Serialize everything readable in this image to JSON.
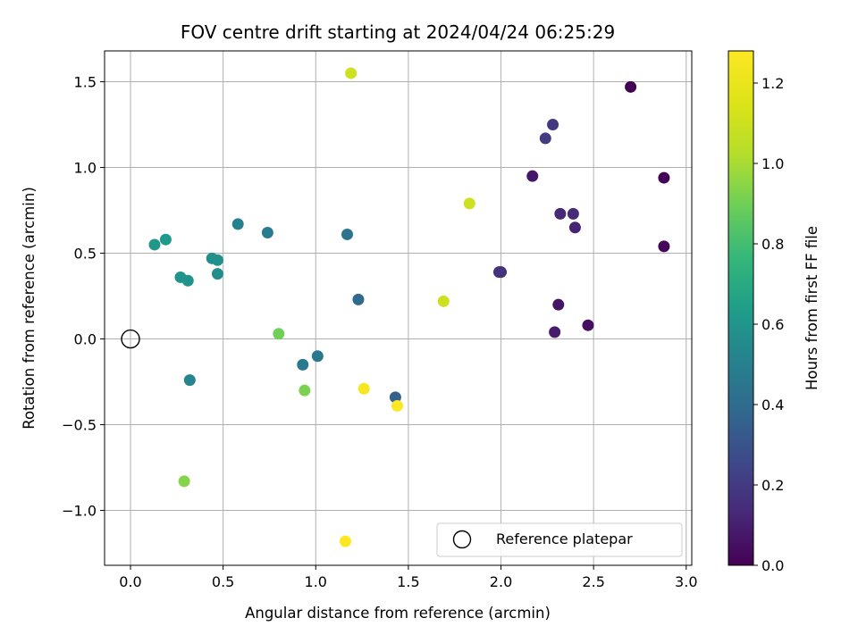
{
  "chart_data": {
    "type": "scatter",
    "title": "FOV centre drift starting at 2024/04/24 06:25:29",
    "xlabel": "Angular distance from reference (arcmin)",
    "ylabel": "Rotation from reference (arcmin)",
    "xlim": [
      -0.14,
      3.03
    ],
    "ylim": [
      -1.32,
      1.68
    ],
    "xticks": [
      0.0,
      0.5,
      1.0,
      1.5,
      2.0,
      2.5,
      3.0
    ],
    "xtick_labels": [
      "0.0",
      "0.5",
      "1.0",
      "1.5",
      "2.0",
      "2.5",
      "3.0"
    ],
    "yticks": [
      -1.0,
      -0.5,
      0.0,
      0.5,
      1.0,
      1.5
    ],
    "ytick_labels": [
      "−1.0",
      "−0.5",
      "0.0",
      "0.5",
      "1.0",
      "1.5"
    ],
    "grid": true,
    "colorbar": {
      "label": "Hours from first FF file",
      "min": 0.0,
      "max": 1.28,
      "ticks": [
        0.0,
        0.2,
        0.4,
        0.6,
        0.8,
        1.0,
        1.2
      ],
      "tick_labels": [
        "0.0",
        "0.2",
        "0.4",
        "0.6",
        "0.8",
        "1.0",
        "1.2"
      ],
      "colormap": "viridis"
    },
    "legend": {
      "placement": "lower-right",
      "entries": [
        "Reference platepar"
      ]
    },
    "reference_point": {
      "x": 0.0,
      "y": 0.0
    },
    "points": [
      {
        "x": 2.7,
        "y": 1.47,
        "hours": 0.0
      },
      {
        "x": 2.88,
        "y": 0.94,
        "hours": 0.01
      },
      {
        "x": 2.88,
        "y": 0.54,
        "hours": 0.02
      },
      {
        "x": 2.47,
        "y": 0.08,
        "hours": 0.04
      },
      {
        "x": 2.31,
        "y": 0.2,
        "hours": 0.06
      },
      {
        "x": 2.17,
        "y": 0.95,
        "hours": 0.07
      },
      {
        "x": 2.29,
        "y": 0.04,
        "hours": 0.09
      },
      {
        "x": 2.4,
        "y": 0.65,
        "hours": 0.11
      },
      {
        "x": 2.32,
        "y": 0.73,
        "hours": 0.13
      },
      {
        "x": 2.39,
        "y": 0.73,
        "hours": 0.14
      },
      {
        "x": 2.0,
        "y": 0.39,
        "hours": 0.16
      },
      {
        "x": 1.99,
        "y": 0.39,
        "hours": 0.17
      },
      {
        "x": 2.28,
        "y": 1.25,
        "hours": 0.19
      },
      {
        "x": 2.24,
        "y": 1.17,
        "hours": 0.21
      },
      {
        "x": 1.43,
        "y": -0.34,
        "hours": 0.36
      },
      {
        "x": 1.23,
        "y": 0.23,
        "hours": 0.4
      },
      {
        "x": 1.17,
        "y": 0.61,
        "hours": 0.44
      },
      {
        "x": 1.01,
        "y": -0.1,
        "hours": 0.46
      },
      {
        "x": 0.93,
        "y": -0.15,
        "hours": 0.47
      },
      {
        "x": 0.74,
        "y": 0.62,
        "hours": 0.48
      },
      {
        "x": 0.58,
        "y": 0.67,
        "hours": 0.5
      },
      {
        "x": 0.32,
        "y": -0.24,
        "hours": 0.52
      },
      {
        "x": 0.47,
        "y": 0.38,
        "hours": 0.56
      },
      {
        "x": 0.44,
        "y": 0.47,
        "hours": 0.57
      },
      {
        "x": 0.47,
        "y": 0.46,
        "hours": 0.58
      },
      {
        "x": 0.31,
        "y": 0.34,
        "hours": 0.59
      },
      {
        "x": 0.27,
        "y": 0.36,
        "hours": 0.6
      },
      {
        "x": 0.13,
        "y": 0.55,
        "hours": 0.61
      },
      {
        "x": 0.19,
        "y": 0.58,
        "hours": 0.62
      },
      {
        "x": 0.8,
        "y": 0.03,
        "hours": 0.9
      },
      {
        "x": 0.94,
        "y": -0.3,
        "hours": 0.92
      },
      {
        "x": 0.29,
        "y": -0.83,
        "hours": 0.94
      },
      {
        "x": 1.19,
        "y": 1.55,
        "hours": 1.1
      },
      {
        "x": 1.83,
        "y": 0.79,
        "hours": 1.1
      },
      {
        "x": 1.69,
        "y": 0.22,
        "hours": 1.1
      },
      {
        "x": 1.26,
        "y": -0.29,
        "hours": 1.26
      },
      {
        "x": 1.44,
        "y": -0.39,
        "hours": 1.27
      },
      {
        "x": 1.16,
        "y": -1.18,
        "hours": 1.28
      }
    ]
  }
}
